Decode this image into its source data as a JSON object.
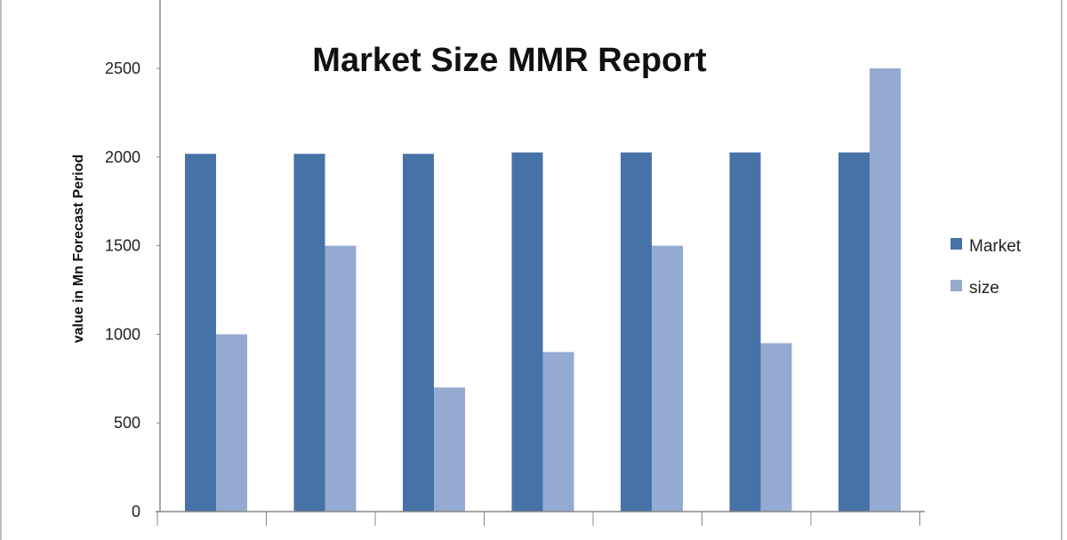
{
  "chart_data": {
    "type": "bar",
    "title": "Market Size MMR Report",
    "xlabel": "",
    "ylabel": "value in Mn  Forecast  Period",
    "ylim": [
      0,
      2500
    ],
    "yticks": [
      0,
      500,
      1000,
      1500,
      2000,
      2500
    ],
    "grid": false,
    "legend_position": "right",
    "categories": [
      "",
      "",
      "",
      "",
      "",
      "",
      ""
    ],
    "series": [
      {
        "name": "Market",
        "color": "#4672a8",
        "values": [
          2018,
          2018,
          2018,
          2026,
          2026,
          2026,
          2026
        ]
      },
      {
        "name": "size",
        "color": "#95aad0",
        "values": [
          1000,
          1500,
          700,
          900,
          1500,
          950,
          2500
        ]
      }
    ]
  }
}
